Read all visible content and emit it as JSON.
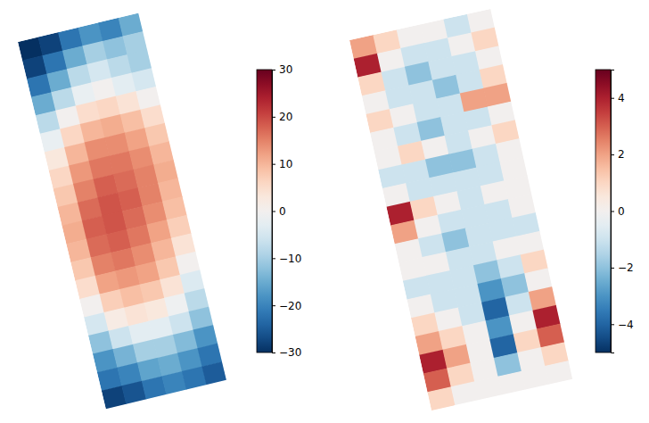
{
  "chart_data": [
    {
      "type": "heatmap",
      "tick_labels": false,
      "colorbar_range": [
        -30,
        30
      ],
      "colorbar_ticks": [
        {
          "value": -30,
          "label": "−30"
        },
        {
          "value": -20,
          "label": "−20"
        },
        {
          "value": -10,
          "label": "−10"
        },
        0,
        10,
        20,
        30
      ],
      "values": [
        [
          -30,
          -28,
          -22,
          -18,
          -20,
          -15
        ],
        [
          -28,
          -22,
          -15,
          -10,
          -12,
          -10
        ],
        [
          -22,
          -15,
          -8,
          -5,
          -8,
          -10
        ],
        [
          -15,
          -8,
          -2,
          0,
          -3,
          -5
        ],
        [
          -8,
          0,
          5,
          6,
          4,
          0
        ],
        [
          -2,
          6,
          10,
          11,
          9,
          5
        ],
        [
          3,
          10,
          14,
          14,
          12,
          8
        ],
        [
          6,
          13,
          16,
          16,
          14,
          10
        ],
        [
          8,
          15,
          18,
          17,
          15,
          11
        ],
        [
          10,
          17,
          19,
          18,
          15,
          10
        ],
        [
          11,
          18,
          19,
          17,
          14,
          9
        ],
        [
          10,
          17,
          18,
          16,
          12,
          7
        ],
        [
          8,
          15,
          16,
          14,
          10,
          4
        ],
        [
          5,
          12,
          13,
          12,
          8,
          0
        ],
        [
          0,
          7,
          9,
          8,
          4,
          -4
        ],
        [
          -5,
          2,
          4,
          3,
          -1,
          -8
        ],
        [
          -12,
          -6,
          -3,
          -3,
          -6,
          -12
        ],
        [
          -18,
          -14,
          -10,
          -10,
          -13,
          -18
        ],
        [
          -22,
          -20,
          -16,
          -15,
          -18,
          -22
        ],
        [
          -28,
          -26,
          -22,
          -20,
          -22,
          -25
        ]
      ]
    },
    {
      "type": "heatmap",
      "tick_labels": false,
      "colorbar_range": [
        -5,
        5
      ],
      "colorbar_ticks": [
        {
          "value": -4,
          "label": "−4"
        },
        {
          "value": -2,
          "label": "−2"
        },
        0,
        2,
        4
      ],
      "values": [
        [
          2,
          1,
          0,
          0,
          -1,
          0
        ],
        [
          4,
          0,
          -1,
          -1,
          0,
          1
        ],
        [
          1,
          -1,
          -2,
          -1,
          -1,
          0
        ],
        [
          0,
          -1,
          -1,
          -2,
          -1,
          1
        ],
        [
          1,
          0,
          -1,
          -1,
          2,
          2
        ],
        [
          0,
          -1,
          -2,
          -1,
          -1,
          0
        ],
        [
          0,
          1,
          0,
          -1,
          0,
          1
        ],
        [
          -1,
          -1,
          -2,
          -2,
          -1,
          0
        ],
        [
          0,
          -1,
          -1,
          -1,
          -1,
          0
        ],
        [
          4,
          1,
          0,
          -1,
          0,
          0
        ],
        [
          2,
          0,
          -1,
          -1,
          -1,
          0
        ],
        [
          0,
          -1,
          -2,
          -1,
          -1,
          -1
        ],
        [
          0,
          0,
          -1,
          -1,
          0,
          0
        ],
        [
          -1,
          -1,
          -1,
          -2,
          -1,
          1
        ],
        [
          0,
          -1,
          -1,
          -3,
          -2,
          0
        ],
        [
          1,
          0,
          -1,
          -4,
          -1,
          2
        ],
        [
          2,
          1,
          0,
          -3,
          0,
          4
        ],
        [
          4,
          2,
          0,
          -4,
          1,
          3
        ],
        [
          3,
          1,
          0,
          -2,
          0,
          1
        ],
        [
          1,
          0,
          0,
          0,
          0,
          0
        ]
      ]
    }
  ]
}
